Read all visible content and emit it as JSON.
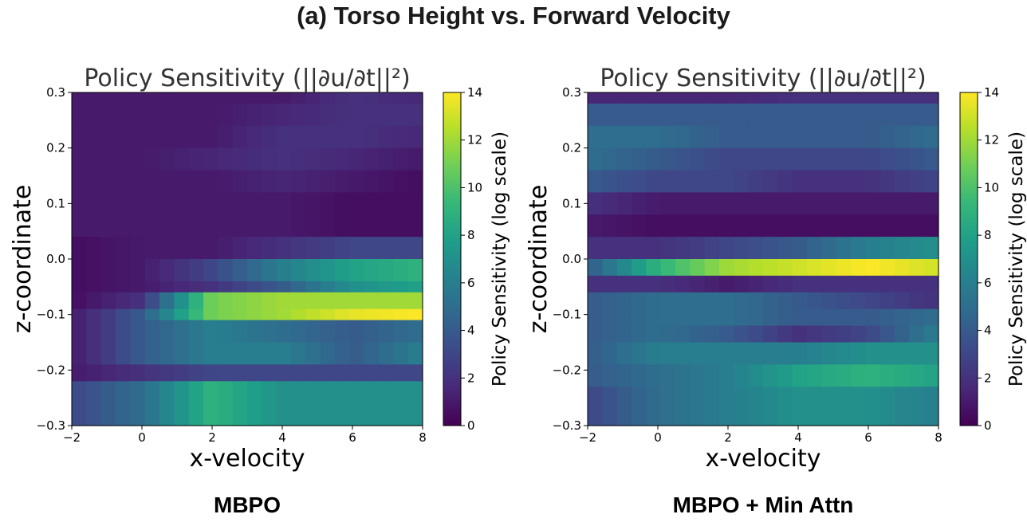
{
  "figure_title": "(a) Torso Height vs. Forward Velocity",
  "captions": [
    "MBPO",
    "MBPO + Min Attn"
  ],
  "colormap": [
    "#440154",
    "#482878",
    "#3e4989",
    "#31688e",
    "#26828e",
    "#1f9e89",
    "#35b779",
    "#6ece58",
    "#b5de2b",
    "#fde725"
  ],
  "chart_data": [
    {
      "type": "heatmap",
      "title": "Policy Sensitivity (||∂u/∂t||²)",
      "xlabel": "x-velocity",
      "ylabel": "z-coordinate",
      "colorbar_label": "Policy Sensitivity (log scale)",
      "xlim": [
        -2,
        8
      ],
      "ylim": [
        -0.3,
        0.3
      ],
      "clim": [
        0,
        14
      ],
      "xticks": [
        "−2",
        "0",
        "2",
        "4",
        "6",
        "8"
      ],
      "yticks": [
        "0.3",
        "0.2",
        "0.1",
        "0.0",
        "−0.1",
        "−0.2",
        "−0.3"
      ],
      "cticks": [
        "14",
        "12",
        "10",
        "8",
        "6",
        "4",
        "2",
        "0"
      ],
      "z_bands": [
        {
          "z": [
            0.28,
            0.3
          ],
          "values": [
            1,
            1,
            1,
            1,
            2,
            1.5
          ]
        },
        {
          "z": [
            0.24,
            0.28
          ],
          "values": [
            1,
            1,
            1,
            1.5,
            2,
            2
          ]
        },
        {
          "z": [
            0.2,
            0.24
          ],
          "values": [
            1,
            1,
            1,
            2,
            2,
            1.5
          ]
        },
        {
          "z": [
            0.16,
            0.2
          ],
          "values": [
            1,
            1,
            1.5,
            2,
            1.5,
            1
          ]
        },
        {
          "z": [
            0.12,
            0.16
          ],
          "values": [
            1,
            1,
            1,
            1.5,
            1,
            0.5
          ]
        },
        {
          "z": [
            0.08,
            0.12
          ],
          "values": [
            1,
            1,
            1,
            1,
            0.5,
            0.5
          ]
        },
        {
          "z": [
            0.04,
            0.08
          ],
          "values": [
            1,
            1,
            1,
            1,
            0.5,
            0.5
          ]
        },
        {
          "z": [
            0.0,
            0.04
          ],
          "values": [
            0.5,
            1,
            1,
            2,
            3,
            3
          ]
        },
        {
          "z": [
            -0.04,
            0.0
          ],
          "values": [
            0.5,
            1,
            3,
            6,
            8,
            9
          ]
        },
        {
          "z": [
            -0.06,
            -0.04
          ],
          "values": [
            0.5,
            1,
            2,
            4,
            7,
            8
          ]
        },
        {
          "z": [
            -0.09,
            -0.06
          ],
          "values": [
            0.5,
            2,
            11,
            12,
            12,
            12
          ]
        },
        {
          "z": [
            -0.11,
            -0.09
          ],
          "values": [
            1,
            4,
            11,
            12,
            13.5,
            14
          ]
        },
        {
          "z": [
            -0.15,
            -0.11
          ],
          "values": [
            1,
            4,
            6,
            5,
            4,
            5
          ]
        },
        {
          "z": [
            -0.19,
            -0.15
          ],
          "values": [
            1,
            4,
            6,
            6,
            4,
            6
          ]
        },
        {
          "z": [
            -0.22,
            -0.19
          ],
          "values": [
            1,
            2,
            3,
            3,
            3,
            3
          ]
        },
        {
          "z": [
            -0.3,
            -0.22
          ],
          "values": [
            3,
            5,
            9,
            7,
            7,
            7
          ]
        }
      ]
    },
    {
      "type": "heatmap",
      "title": "Policy Sensitivity (||∂u/∂t||²)",
      "xlabel": "x-velocity",
      "ylabel": "z-coordinate",
      "colorbar_label": "Policy Sensitivity (log scale)",
      "xlim": [
        -2,
        8
      ],
      "ylim": [
        -0.3,
        0.3
      ],
      "clim": [
        0,
        14
      ],
      "xticks": [
        "−2",
        "0",
        "2",
        "4",
        "6",
        "8"
      ],
      "yticks": [
        "0.3",
        "0.2",
        "0.1",
        "0.0",
        "−0.1",
        "−0.2",
        "−0.3"
      ],
      "cticks": [
        "14",
        "12",
        "10",
        "8",
        "6",
        "4",
        "2",
        "0"
      ],
      "z_bands": [
        {
          "z": [
            0.28,
            0.3
          ],
          "values": [
            1.5,
            1.5,
            1.5,
            2,
            2,
            2
          ]
        },
        {
          "z": [
            0.24,
            0.28
          ],
          "values": [
            4,
            4,
            4,
            4,
            4,
            4
          ]
        },
        {
          "z": [
            0.2,
            0.24
          ],
          "values": [
            5,
            5,
            4,
            4,
            4,
            5
          ]
        },
        {
          "z": [
            0.16,
            0.2
          ],
          "values": [
            5,
            4,
            3,
            3,
            3,
            4
          ]
        },
        {
          "z": [
            0.12,
            0.16
          ],
          "values": [
            4,
            3,
            3,
            2,
            2,
            3
          ]
        },
        {
          "z": [
            0.08,
            0.12
          ],
          "values": [
            2,
            1,
            1,
            1,
            1,
            1
          ]
        },
        {
          "z": [
            0.04,
            0.08
          ],
          "values": [
            1,
            0.5,
            0.5,
            0.5,
            0.5,
            0.5
          ]
        },
        {
          "z": [
            0.0,
            0.04
          ],
          "values": [
            2,
            2,
            3,
            4,
            6,
            7
          ]
        },
        {
          "z": [
            -0.03,
            0.0
          ],
          "values": [
            4,
            9,
            12,
            13,
            14,
            13
          ]
        },
        {
          "z": [
            -0.06,
            -0.03
          ],
          "values": [
            2,
            2,
            1,
            2,
            2,
            2
          ]
        },
        {
          "z": [
            -0.09,
            -0.06
          ],
          "values": [
            4,
            5,
            5,
            4,
            3,
            2
          ]
        },
        {
          "z": [
            -0.12,
            -0.09
          ],
          "values": [
            4,
            5,
            5,
            4,
            4,
            5
          ]
        },
        {
          "z": [
            -0.15,
            -0.12
          ],
          "values": [
            4,
            5,
            4,
            2,
            3,
            6
          ]
        },
        {
          "z": [
            -0.19,
            -0.15
          ],
          "values": [
            4,
            6,
            6,
            6,
            7,
            7
          ]
        },
        {
          "z": [
            -0.23,
            -0.19
          ],
          "values": [
            4,
            5,
            6,
            8,
            9,
            8
          ]
        },
        {
          "z": [
            -0.3,
            -0.23
          ],
          "values": [
            3,
            5,
            6,
            7,
            7,
            6
          ]
        }
      ]
    }
  ]
}
